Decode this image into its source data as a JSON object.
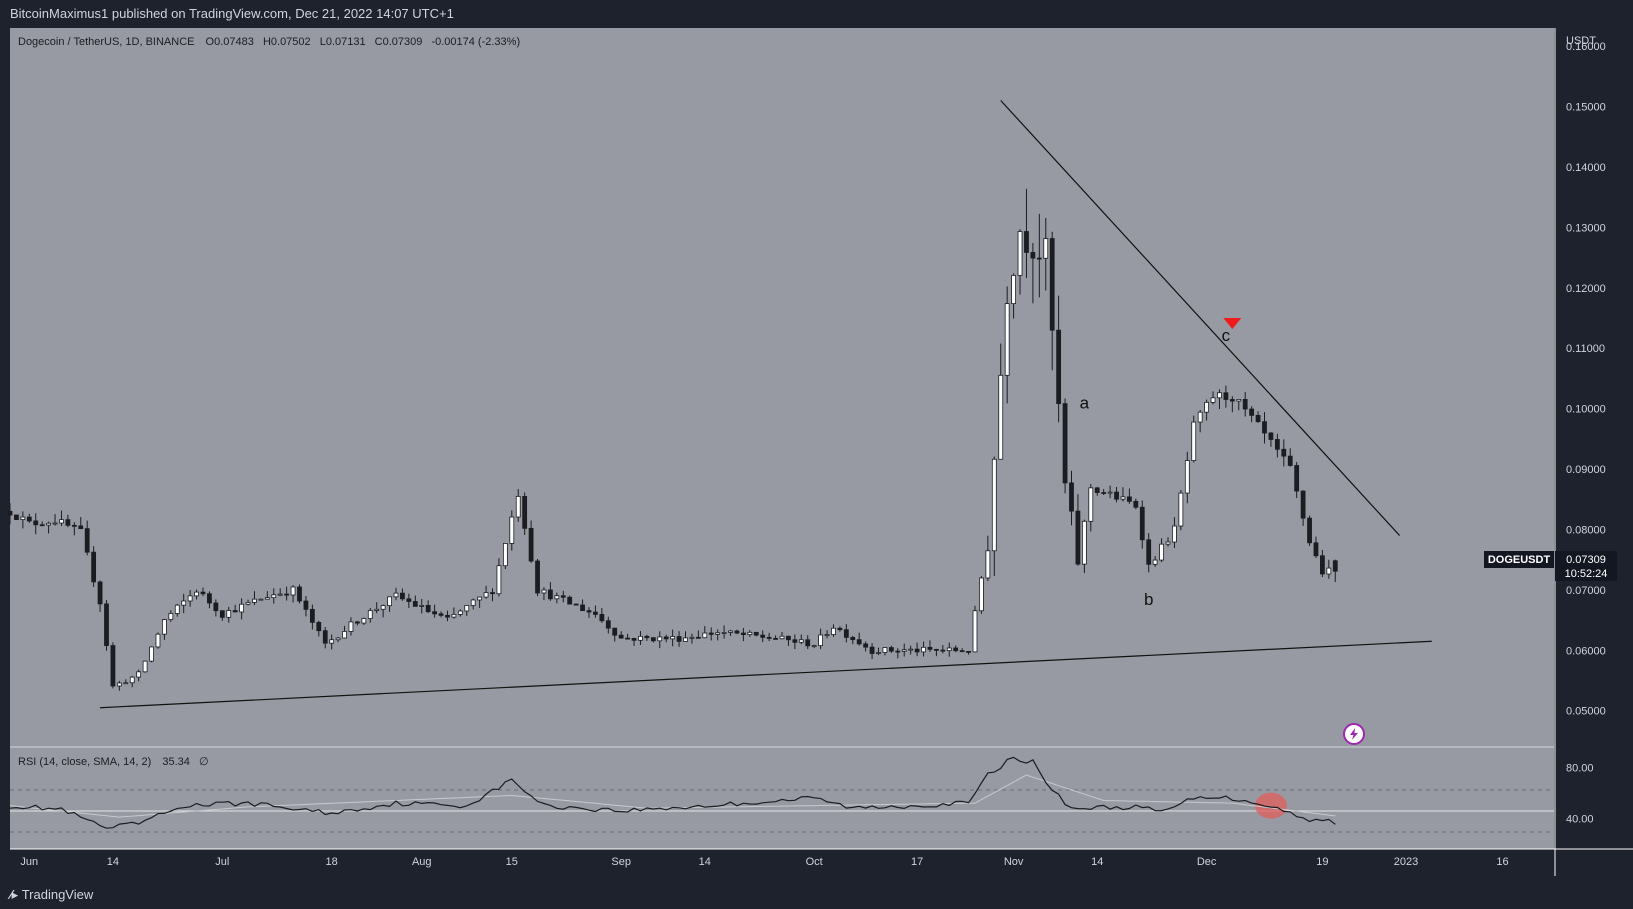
{
  "publisher_line": "BitcoinMaximus1 published on TradingView.com, Dec 21, 2022 14:07 UTC+1",
  "footer_brand": "TradingView",
  "colors": {
    "background": "#1e222d",
    "pane": "#979aa2",
    "candle_up_body": "#ffffff",
    "candle_down_body": "#1b1d22",
    "wick": "#1b1d22",
    "marker": "#ef1b1b",
    "rsi_line": "#1b1d22",
    "rsi_highlight": "#e25c5c"
  },
  "legend": {
    "title": "Dogecoin / TetherUS, 1D, BINANCE",
    "open_label": "O",
    "open": "0.07483",
    "high_label": "H",
    "high": "0.07502",
    "low_label": "L",
    "low": "0.07131",
    "close_label": "C",
    "close": "0.07309",
    "change": "-0.00174 (-2.33%)"
  },
  "price_axis": {
    "unit": "USDT",
    "ticks": [
      "0.16000",
      "0.15000",
      "0.14000",
      "0.13000",
      "0.12000",
      "0.11000",
      "0.10000",
      "0.09000",
      "0.08000",
      "0.07000",
      "0.06000",
      "0.05000"
    ],
    "current_symbol": "DOGEUSDT",
    "current_price": "0.07309",
    "countdown": "10:52:24"
  },
  "rsi": {
    "legend": "RSI (14, close, SMA, 14, 2)",
    "value": "35.34",
    "extra": "∅",
    "ticks": [
      "80.00",
      "40.00"
    ]
  },
  "time_axis": {
    "ticks": [
      "Jun",
      "14",
      "Jul",
      "18",
      "Aug",
      "15",
      "Sep",
      "14",
      "Oct",
      "17",
      "Nov",
      "14",
      "Dec",
      "19",
      "2023",
      "16"
    ]
  },
  "annotations": {
    "wave_a": "a",
    "wave_b": "b",
    "wave_c": "c"
  },
  "chart_data": {
    "type": "candlestick",
    "title": "Dogecoin / TetherUS, 1D, BINANCE",
    "ylabel": "USDT",
    "ylim": [
      0.044,
      0.163
    ],
    "rsi_ylim": [
      16,
      96
    ],
    "x_range": [
      "2022-05-29",
      "2023-01-24"
    ],
    "x_ticks": [
      {
        "date": "2022-06-01",
        "label": "Jun"
      },
      {
        "date": "2022-06-14",
        "label": "14"
      },
      {
        "date": "2022-07-01",
        "label": "Jul"
      },
      {
        "date": "2022-07-18",
        "label": "18"
      },
      {
        "date": "2022-08-01",
        "label": "Aug"
      },
      {
        "date": "2022-08-15",
        "label": "15"
      },
      {
        "date": "2022-09-01",
        "label": "Sep"
      },
      {
        "date": "2022-09-14",
        "label": "14"
      },
      {
        "date": "2022-10-01",
        "label": "Oct"
      },
      {
        "date": "2022-10-17",
        "label": "17"
      },
      {
        "date": "2022-11-01",
        "label": "Nov"
      },
      {
        "date": "2022-11-14",
        "label": "14"
      },
      {
        "date": "2022-12-01",
        "label": "Dec"
      },
      {
        "date": "2022-12-19",
        "label": "19"
      },
      {
        "date": "2023-01-01",
        "label": "2023"
      },
      {
        "date": "2023-01-16",
        "label": "16"
      }
    ],
    "price_anchors": [
      [
        "2022-05-29",
        0.083
      ],
      [
        "2022-06-01",
        0.081
      ],
      [
        "2022-06-05",
        0.0815
      ],
      [
        "2022-06-09",
        0.0795
      ],
      [
        "2022-06-12",
        0.068
      ],
      [
        "2022-06-14",
        0.054
      ],
      [
        "2022-06-18",
        0.056
      ],
      [
        "2022-06-22",
        0.065
      ],
      [
        "2022-06-27",
        0.07
      ],
      [
        "2022-07-01",
        0.066
      ],
      [
        "2022-07-08",
        0.069
      ],
      [
        "2022-07-12",
        0.07
      ],
      [
        "2022-07-17",
        0.061
      ],
      [
        "2022-07-22",
        0.065
      ],
      [
        "2022-07-28",
        0.069
      ],
      [
        "2022-08-05",
        0.065
      ],
      [
        "2022-08-12",
        0.07
      ],
      [
        "2022-08-16",
        0.086
      ],
      [
        "2022-08-19",
        0.07
      ],
      [
        "2022-08-28",
        0.066
      ],
      [
        "2022-09-01",
        0.062
      ],
      [
        "2022-09-10",
        0.062
      ],
      [
        "2022-09-16",
        0.063
      ],
      [
        "2022-09-25",
        0.062
      ],
      [
        "2022-10-01",
        0.061
      ],
      [
        "2022-10-04",
        0.064
      ],
      [
        "2022-10-10",
        0.06
      ],
      [
        "2022-10-25",
        0.06
      ],
      [
        "2022-10-28",
        0.078
      ],
      [
        "2022-10-31",
        0.12
      ],
      [
        "2022-11-02",
        0.13
      ],
      [
        "2022-11-06",
        0.125
      ],
      [
        "2022-11-09",
        0.087
      ],
      [
        "2022-11-11",
        0.075
      ],
      [
        "2022-11-13",
        0.087
      ],
      [
        "2022-11-20",
        0.084
      ],
      [
        "2022-11-22",
        0.074
      ],
      [
        "2022-11-26",
        0.08
      ],
      [
        "2022-11-29",
        0.097
      ],
      [
        "2022-12-02",
        0.102
      ],
      [
        "2022-12-05",
        0.102
      ],
      [
        "2022-12-09",
        0.097
      ],
      [
        "2022-12-14",
        0.09
      ],
      [
        "2022-12-17",
        0.078
      ],
      [
        "2022-12-19",
        0.073
      ],
      [
        "2022-12-21",
        0.07309
      ]
    ],
    "last_candle": {
      "date": "2022-12-21",
      "open": 0.07483,
      "high": 0.07502,
      "low": 0.07131,
      "close": 0.07309
    },
    "trendlines": [
      {
        "name": "resistance",
        "from": {
          "date": "2022-10-30",
          "price": 0.151
        },
        "to": {
          "date": "2022-12-31",
          "price": 0.079
        }
      },
      {
        "name": "support",
        "from": {
          "date": "2022-06-12",
          "price": 0.0505
        },
        "to": {
          "date": "2023-01-05",
          "price": 0.0615
        }
      }
    ],
    "wave_labels": [
      {
        "text": "a",
        "date": "2022-11-12",
        "price": 0.1
      },
      {
        "text": "b",
        "date": "2022-11-22",
        "price": 0.0675
      },
      {
        "text": "c",
        "date": "2022-12-04",
        "price": 0.1112
      }
    ],
    "marker": {
      "shape": "triangle-down",
      "date": "2022-12-05",
      "price": 0.114
    },
    "rsi_anchors": [
      [
        "2022-05-29",
        50
      ],
      [
        "2022-06-06",
        47
      ],
      [
        "2022-06-13",
        32
      ],
      [
        "2022-06-18",
        36
      ],
      [
        "2022-06-25",
        50
      ],
      [
        "2022-07-05",
        52
      ],
      [
        "2022-07-18",
        44
      ],
      [
        "2022-07-28",
        52
      ],
      [
        "2022-08-08",
        50
      ],
      [
        "2022-08-15",
        70
      ],
      [
        "2022-08-20",
        50
      ],
      [
        "2022-09-01",
        46
      ],
      [
        "2022-09-15",
        50
      ],
      [
        "2022-10-01",
        56
      ],
      [
        "2022-10-07",
        48
      ],
      [
        "2022-10-25",
        52
      ],
      [
        "2022-10-28",
        74
      ],
      [
        "2022-11-01",
        88
      ],
      [
        "2022-11-04",
        84
      ],
      [
        "2022-11-07",
        62
      ],
      [
        "2022-11-10",
        48
      ],
      [
        "2022-11-20",
        49
      ],
      [
        "2022-11-24",
        45
      ],
      [
        "2022-11-30",
        58
      ],
      [
        "2022-12-06",
        55
      ],
      [
        "2022-12-11",
        50
      ],
      [
        "2022-12-16",
        40
      ],
      [
        "2022-12-20",
        38
      ],
      [
        "2022-12-21",
        35.34
      ]
    ],
    "rsi_sma_anchors": [
      [
        "2022-05-29",
        50
      ],
      [
        "2022-06-15",
        41
      ],
      [
        "2022-07-05",
        49
      ],
      [
        "2022-08-15",
        58
      ],
      [
        "2022-09-05",
        48
      ],
      [
        "2022-10-26",
        52
      ],
      [
        "2022-11-03",
        74
      ],
      [
        "2022-11-15",
        54
      ],
      [
        "2022-12-05",
        52
      ],
      [
        "2022-12-21",
        42
      ]
    ],
    "rsi_levels": [
      70,
      50,
      30
    ],
    "rsi_highlight": {
      "date": "2022-12-11",
      "value": 50
    },
    "current_price": 0.07309
  }
}
